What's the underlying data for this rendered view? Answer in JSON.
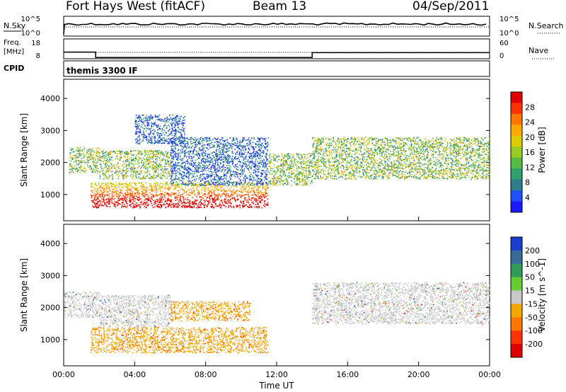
{
  "header": {
    "station": "Fort Hays West (fitACF)",
    "beam": "Beam 13",
    "date": "04/Sep/2011",
    "control_program": "themis 3300 IF"
  },
  "labels": {
    "nsky": "N.Sky",
    "nsearch": "N.Search",
    "freq": "Freq.",
    "freq_unit": "[MHz]",
    "cpid": "CPID",
    "nave": "Nave",
    "range_axis": "Slant Range [km]",
    "time_axis": "Time UT"
  },
  "chart_data": [
    {
      "type": "line",
      "panel": "noise",
      "series": [
        {
          "name": "N.Sky",
          "style": "solid",
          "values": "~constant near 10^5 00:00-24:00 (drop at start)"
        },
        {
          "name": "N.Search",
          "style": "dotted"
        }
      ],
      "y_ticks_left": [
        "10^5",
        "10^0"
      ],
      "y_ticks_right": [
        "10^5",
        "10^0"
      ]
    },
    {
      "type": "line",
      "panel": "frequency",
      "y_ticks_left": [
        "18",
        "8"
      ],
      "y_ticks_right": [
        "60",
        "0"
      ],
      "series": [
        {
          "name": "Freq.",
          "style": "solid",
          "x": [
            "00:00",
            "01:48",
            "01:48",
            "14:00",
            "14:00",
            "24:00"
          ],
          "y": [
            13.5,
            13.5,
            10.8,
            10.8,
            13.2,
            13.2
          ]
        },
        {
          "name": "Nave",
          "style": "dotted",
          "x": [
            "00:00",
            "24:00"
          ],
          "y": [
            16,
            16
          ]
        }
      ]
    },
    {
      "type": "heatmap",
      "panel": "power",
      "xlabel": "Time UT",
      "ylabel": "Slant Range [km]",
      "xlim": [
        "00:00",
        "24:00"
      ],
      "ylim": [
        180,
        4600
      ],
      "y_ticks": [
        1000,
        2000,
        3000,
        4000
      ],
      "colorbar": {
        "label": "Power [dB]",
        "ticks": [
          4,
          8,
          12,
          16,
          20,
          24,
          28
        ],
        "colors": [
          "#1a1aff",
          "#2050ff",
          "#2e7d8a",
          "#2f9f6e",
          "#55bb44",
          "#99cc22",
          "#ddcc00",
          "#ffaa00",
          "#ff7700",
          "#ff3300",
          "#e00000"
        ]
      },
      "regions": [
        {
          "t": [
            0.3,
            2.0
          ],
          "r": [
            1700,
            2500
          ],
          "level": "mid"
        },
        {
          "t": [
            2.0,
            6.0
          ],
          "r": [
            1500,
            2400
          ],
          "level": "mid"
        },
        {
          "t": [
            1.5,
            11.5
          ],
          "r": [
            600,
            1400
          ],
          "level": "high"
        },
        {
          "t": [
            6.0,
            11.5
          ],
          "r": [
            1300,
            2800
          ],
          "level": "low"
        },
        {
          "t": [
            4.0,
            6.8
          ],
          "r": [
            2600,
            3500
          ],
          "level": "low"
        },
        {
          "t": [
            11.5,
            14.0
          ],
          "r": [
            1300,
            2300
          ],
          "level": "mid"
        },
        {
          "t": [
            14.0,
            24.0
          ],
          "r": [
            1500,
            2800
          ],
          "level": "mid"
        }
      ]
    },
    {
      "type": "heatmap",
      "panel": "velocity",
      "xlabel": "Time UT",
      "ylabel": "Slant Range [km]",
      "xlim": [
        "00:00",
        "24:00"
      ],
      "ylim": [
        180,
        4600
      ],
      "y_ticks": [
        1000,
        2000,
        3000,
        4000
      ],
      "x_ticks": [
        "00:00",
        "04:00",
        "08:00",
        "12:00",
        "16:00",
        "20:00",
        "00:00"
      ],
      "colorbar": {
        "label": "Velocity [m s^-1]",
        "ticks": [
          200,
          100,
          50,
          15,
          -15,
          -50,
          -100,
          -200
        ],
        "colors": [
          "#1a3fd0",
          "#3a6a9a",
          "#2e9b5a",
          "#66cc33",
          "#c8c8c8",
          "#f5a700",
          "#ff7700",
          "#ff3300",
          "#e00000"
        ]
      },
      "regions": [
        {
          "t": [
            0.0,
            2.0
          ],
          "r": [
            1700,
            2500
          ],
          "level": "ground"
        },
        {
          "t": [
            2.0,
            6.0
          ],
          "r": [
            1400,
            2400
          ],
          "level": "ground"
        },
        {
          "t": [
            1.5,
            11.5
          ],
          "r": [
            600,
            1400
          ],
          "level": "away"
        },
        {
          "t": [
            6.0,
            10.5
          ],
          "r": [
            1600,
            2200
          ],
          "level": "away"
        },
        {
          "t": [
            14.0,
            24.0
          ],
          "r": [
            1500,
            2800
          ],
          "level": "ground"
        }
      ]
    }
  ]
}
